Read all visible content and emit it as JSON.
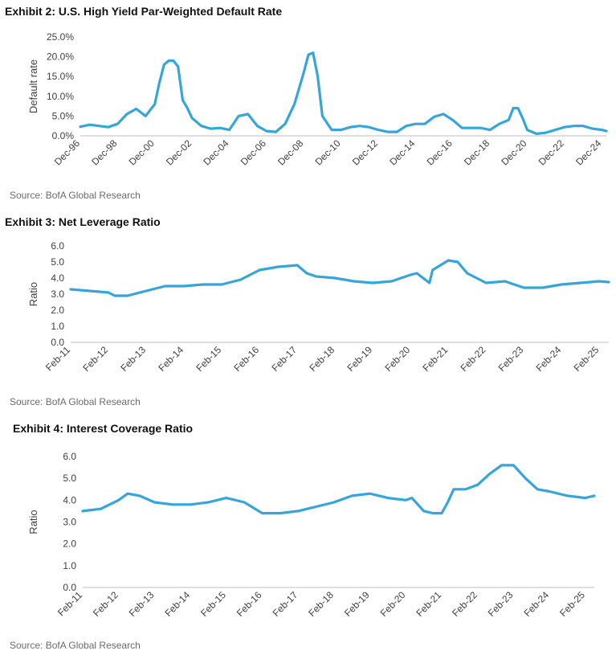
{
  "exhibits": [
    {
      "title": "Exhibit 2: U.S. High Yield Par-Weighted Default Rate",
      "source": "Source: BofA Global Research"
    },
    {
      "title": "Exhibit 3: Net Leverage Ratio",
      "source": "Source: BofA Global Research"
    },
    {
      "title": "Exhibit 4: Interest Coverage Ratio",
      "source": "Source: BofA Global Research"
    }
  ],
  "series_color": "#37a5d8",
  "chart_data": [
    {
      "type": "line",
      "title": "Exhibit 2: U.S. High Yield Par-Weighted Default Rate",
      "ylabel": "Default rate",
      "xlabel": "",
      "ylim": [
        0,
        25
      ],
      "yticks": [
        "0.0%",
        "5.0%",
        "10.0%",
        "15.0%",
        "20.0%",
        "25.0%"
      ],
      "xticks": [
        "Dec-96",
        "Dec-98",
        "Dec-00",
        "Dec-02",
        "Dec-04",
        "Dec-06",
        "Dec-08",
        "Dec-10",
        "Dec-12",
        "Dec-14",
        "Dec-16",
        "Dec-18",
        "Dec-20",
        "Dec-22",
        "Dec-24"
      ],
      "xlim": [
        "1996-12",
        "2025-03"
      ],
      "grid": false,
      "x": [
        "1996-12",
        "1997-06",
        "1997-12",
        "1998-06",
        "1998-12",
        "1999-06",
        "1999-12",
        "2000-06",
        "2000-12",
        "2001-03",
        "2001-06",
        "2001-09",
        "2001-12",
        "2002-03",
        "2002-06",
        "2002-09",
        "2002-12",
        "2003-06",
        "2003-12",
        "2004-06",
        "2004-12",
        "2005-06",
        "2005-12",
        "2006-06",
        "2006-12",
        "2007-06",
        "2007-12",
        "2008-06",
        "2008-12",
        "2009-03",
        "2009-06",
        "2009-09",
        "2009-12",
        "2010-06",
        "2010-12",
        "2011-06",
        "2011-12",
        "2012-06",
        "2012-12",
        "2013-06",
        "2013-12",
        "2014-06",
        "2014-12",
        "2015-06",
        "2015-12",
        "2016-06",
        "2016-12",
        "2017-06",
        "2017-12",
        "2018-06",
        "2018-12",
        "2019-06",
        "2019-12",
        "2020-03",
        "2020-06",
        "2020-09",
        "2020-12",
        "2021-06",
        "2021-12",
        "2022-06",
        "2022-12",
        "2023-06",
        "2023-12",
        "2024-06",
        "2024-12",
        "2025-03"
      ],
      "series": [
        {
          "values": [
            2.3,
            2.8,
            2.5,
            2.2,
            3.0,
            5.5,
            6.8,
            5.0,
            8.0,
            13.5,
            18.0,
            19.0,
            19.0,
            17.5,
            9.0,
            7.0,
            4.5,
            2.5,
            1.8,
            2.0,
            1.5,
            5.0,
            5.5,
            2.5,
            1.2,
            1.0,
            3.0,
            8.0,
            16.0,
            20.5,
            21.0,
            15.0,
            5.0,
            1.5,
            1.5,
            2.2,
            2.5,
            2.2,
            1.5,
            1.0,
            1.0,
            2.5,
            3.0,
            3.0,
            4.8,
            5.5,
            4.0,
            2.0,
            2.0,
            2.0,
            1.5,
            3.0,
            4.0,
            7.0,
            7.0,
            4.5,
            1.5,
            0.5,
            0.8,
            1.5,
            2.2,
            2.5,
            2.5,
            1.8,
            1.5,
            1.2
          ]
        }
      ]
    },
    {
      "type": "line",
      "title": "Exhibit 3: Net Leverage Ratio",
      "ylabel": "Ratio",
      "xlabel": "",
      "ylim": [
        0,
        6
      ],
      "yticks": [
        "0.0",
        "1.0",
        "2.0",
        "3.0",
        "4.0",
        "5.0",
        "6.0"
      ],
      "xticks": [
        "Feb-11",
        "Feb-12",
        "Feb-13",
        "Feb-14",
        "Feb-15",
        "Feb-16",
        "Feb-17",
        "Feb-18",
        "Feb-19",
        "Feb-20",
        "Feb-21",
        "Feb-22",
        "Feb-23",
        "Feb-24",
        "Feb-25"
      ],
      "xlim": [
        "2011-02",
        "2025-05"
      ],
      "grid": false,
      "x": [
        "2011-02",
        "2011-08",
        "2012-02",
        "2012-04",
        "2012-08",
        "2013-02",
        "2013-08",
        "2014-02",
        "2014-08",
        "2015-02",
        "2015-08",
        "2016-02",
        "2016-08",
        "2017-02",
        "2017-05",
        "2017-08",
        "2018-02",
        "2018-08",
        "2019-02",
        "2019-08",
        "2020-02",
        "2020-04",
        "2020-08",
        "2020-09",
        "2021-02",
        "2021-05",
        "2021-08",
        "2022-02",
        "2022-08",
        "2023-02",
        "2023-08",
        "2024-02",
        "2024-08",
        "2025-02",
        "2025-05"
      ],
      "series": [
        {
          "values": [
            3.3,
            3.2,
            3.1,
            2.9,
            2.9,
            3.2,
            3.5,
            3.5,
            3.6,
            3.6,
            3.9,
            4.5,
            4.7,
            4.8,
            4.3,
            4.1,
            4.0,
            3.8,
            3.7,
            3.8,
            4.2,
            4.3,
            3.7,
            4.5,
            5.1,
            5.0,
            4.3,
            3.7,
            3.8,
            3.4,
            3.4,
            3.6,
            3.7,
            3.8,
            3.75
          ]
        }
      ]
    },
    {
      "type": "line",
      "title": "Exhibit 4: Interest Coverage Ratio",
      "ylabel": "Ratio",
      "xlabel": "",
      "ylim": [
        0,
        6
      ],
      "yticks": [
        "0.0",
        "1.0",
        "2.0",
        "3.0",
        "4.0",
        "5.0",
        "6.0"
      ],
      "xticks": [
        "Feb-11",
        "Feb-12",
        "Feb-13",
        "Feb-14",
        "Feb-15",
        "Feb-16",
        "Feb-17",
        "Feb-18",
        "Feb-19",
        "Feb-20",
        "Feb-21",
        "Feb-22",
        "Feb-23",
        "Feb-24",
        "Feb-25"
      ],
      "xlim": [
        "2011-02",
        "2025-05"
      ],
      "grid": false,
      "x": [
        "2011-02",
        "2011-08",
        "2011-11",
        "2012-02",
        "2012-05",
        "2012-09",
        "2013-02",
        "2013-08",
        "2014-02",
        "2014-08",
        "2015-02",
        "2015-08",
        "2016-02",
        "2016-08",
        "2017-02",
        "2017-08",
        "2018-02",
        "2018-08",
        "2019-02",
        "2019-08",
        "2020-02",
        "2020-04",
        "2020-08",
        "2020-11",
        "2021-02",
        "2021-04",
        "2021-06",
        "2021-10",
        "2022-02",
        "2022-06",
        "2022-10",
        "2023-02",
        "2023-06",
        "2023-10",
        "2024-02",
        "2024-08",
        "2025-02",
        "2025-05"
      ],
      "series": [
        {
          "values": [
            3.5,
            3.6,
            3.8,
            4.0,
            4.3,
            4.2,
            3.9,
            3.8,
            3.8,
            3.9,
            4.1,
            3.9,
            3.4,
            3.4,
            3.5,
            3.7,
            3.9,
            4.2,
            4.3,
            4.1,
            4.0,
            4.1,
            3.5,
            3.4,
            3.4,
            3.9,
            4.5,
            4.5,
            4.7,
            5.2,
            5.6,
            5.6,
            5.0,
            4.5,
            4.4,
            4.2,
            4.1,
            4.2
          ]
        }
      ]
    }
  ]
}
